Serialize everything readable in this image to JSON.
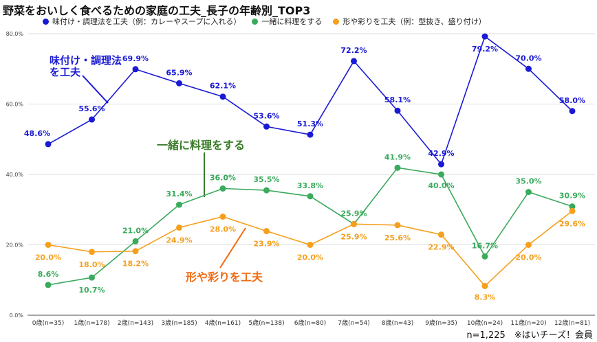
{
  "chart_data": {
    "type": "line",
    "title": "野菜をおいしく食べるための家庭の工夫_長子の年齢別_TOP3",
    "categories": [
      "0歳(n=35)",
      "1歳(n=178)",
      "2歳(n=143)",
      "3歳(n=185)",
      "4歳(n=161)",
      "5歳(n=138)",
      "6歳(n=80)",
      "7歳(n=54)",
      "8歳(n=43)",
      "9歳(n=35)",
      "10歳(n=24)",
      "11歳(n=20)",
      "12歳(n=81)"
    ],
    "ylim": [
      0,
      80
    ],
    "yticks": [
      "0.0%",
      "20.0%",
      "40.0%",
      "60.0%",
      "80.0%"
    ],
    "grid": true,
    "legend_position": "top",
    "series": [
      {
        "name": "味付け・調理法を工夫（例：カレーやスープに入れる）",
        "color": "#1a1ad6",
        "values": [
          48.6,
          55.6,
          69.9,
          65.9,
          62.1,
          53.6,
          51.3,
          72.2,
          58.1,
          42.9,
          79.2,
          70.0,
          58.0
        ]
      },
      {
        "name": "一緒に料理をする",
        "color": "#3aaa5c",
        "values": [
          8.6,
          10.7,
          21.0,
          31.4,
          36.0,
          35.5,
          33.8,
          25.9,
          41.9,
          40.0,
          16.7,
          35.0,
          30.9
        ]
      },
      {
        "name": "形や彩りを工夫（例：型抜き、盛り付け）",
        "color": "#f59f1c",
        "values": [
          20.0,
          18.0,
          18.2,
          24.9,
          28.0,
          23.9,
          20.0,
          25.9,
          25.6,
          22.9,
          8.3,
          20.0,
          29.6
        ]
      }
    ],
    "annotations": [
      "味付け・調理法\nを工夫",
      "一緒に料理をする",
      "形や彩りを工夫"
    ]
  },
  "footer": "n=1,225　※はいチーズ！会員"
}
